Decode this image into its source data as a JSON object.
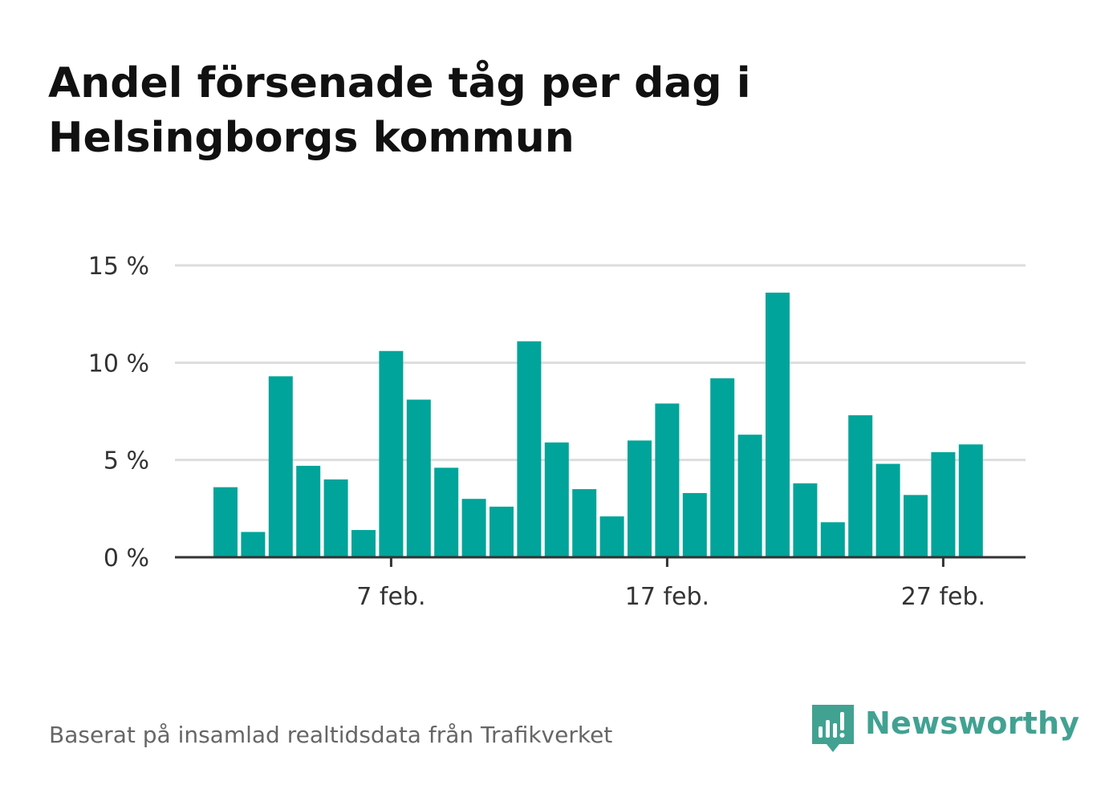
{
  "title": "Andel försenade tåg per dag i Helsingborgs kommun",
  "source": "Baserat på insamlad realtidsdata från Trafikverket",
  "brand": "Newsworthy",
  "colors": {
    "bar": "#00a49a",
    "grid": "#dddddd",
    "axis": "#333333",
    "brand": "#41a292"
  },
  "chart_data": {
    "type": "bar",
    "title": "Andel försenade tåg per dag i Helsingborgs kommun",
    "xlabel": "",
    "ylabel": "",
    "categories": [
      "1 feb.",
      "2 feb.",
      "3 feb.",
      "4 feb.",
      "5 feb.",
      "6 feb.",
      "7 feb.",
      "8 feb.",
      "9 feb.",
      "10 feb.",
      "11 feb.",
      "12 feb.",
      "13 feb.",
      "14 feb.",
      "15 feb.",
      "16 feb.",
      "17 feb.",
      "18 feb.",
      "19 feb.",
      "20 feb.",
      "21 feb.",
      "22 feb.",
      "23 feb.",
      "24 feb.",
      "25 feb.",
      "26 feb.",
      "27 feb.",
      "28 feb."
    ],
    "values": [
      3.6,
      1.3,
      9.3,
      4.7,
      4.0,
      1.4,
      10.6,
      8.1,
      4.6,
      3.0,
      2.6,
      11.1,
      5.9,
      3.5,
      2.1,
      6.0,
      7.9,
      3.3,
      9.2,
      6.3,
      13.6,
      3.8,
      1.8,
      7.3,
      4.8,
      3.2,
      5.4,
      5.8
    ],
    "ylim": [
      0,
      15
    ],
    "yticks": [
      0,
      5,
      10,
      15
    ],
    "ytick_labels": [
      "0 %",
      "5 %",
      "10 %",
      "15 %"
    ],
    "xticks": [
      "7 feb.",
      "17 feb.",
      "27 feb."
    ],
    "grid": true,
    "legend": "none"
  }
}
